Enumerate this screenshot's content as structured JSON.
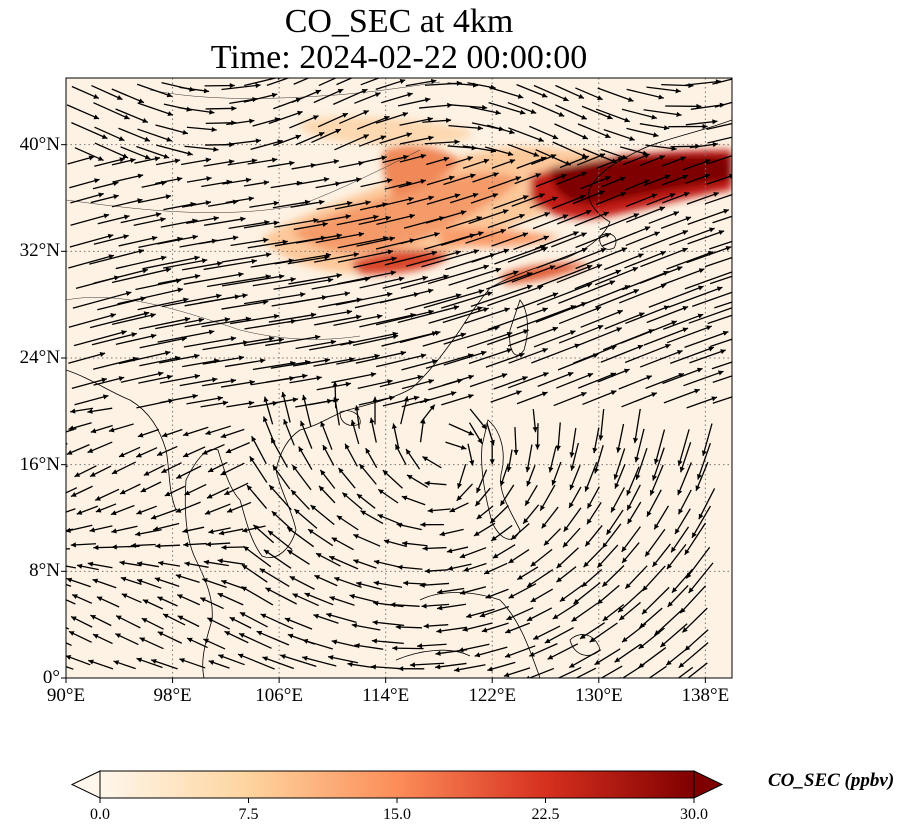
{
  "title": {
    "line1": "CO_SEC at 4km",
    "line2": "Time: 2024-02-22 00:00:00"
  },
  "map": {
    "extent": {
      "lon": [
        90,
        140
      ],
      "lat": [
        0,
        45
      ]
    },
    "lat_ticks": [
      {
        "value": 0,
        "label": "0°"
      },
      {
        "value": 8,
        "label": "8°N"
      },
      {
        "value": 16,
        "label": "16°N"
      },
      {
        "value": 24,
        "label": "24°N"
      },
      {
        "value": 32,
        "label": "32°N"
      },
      {
        "value": 40,
        "label": "40°N"
      }
    ],
    "lon_ticks": [
      {
        "value": 90,
        "label": "90°E"
      },
      {
        "value": 98,
        "label": "98°E"
      },
      {
        "value": 106,
        "label": "106°E"
      },
      {
        "value": 114,
        "label": "114°E"
      },
      {
        "value": 122,
        "label": "122°E"
      },
      {
        "value": 130,
        "label": "130°E"
      },
      {
        "value": 138,
        "label": "138°E"
      }
    ],
    "gridlines": "dotted",
    "coastlines": true,
    "vector_field": "wind arrows",
    "colormap": "OrRd"
  },
  "colorbar": {
    "label": "CO_SEC (ppbv)",
    "min": 0.0,
    "max": 30.0,
    "extend": "both",
    "ticks": [
      "0.0",
      "7.5",
      "15.0",
      "22.5",
      "30.0"
    ],
    "colors": [
      "#fff7ec",
      "#fdd49e",
      "#fc8d59",
      "#d7301f",
      "#7f0000"
    ]
  }
}
